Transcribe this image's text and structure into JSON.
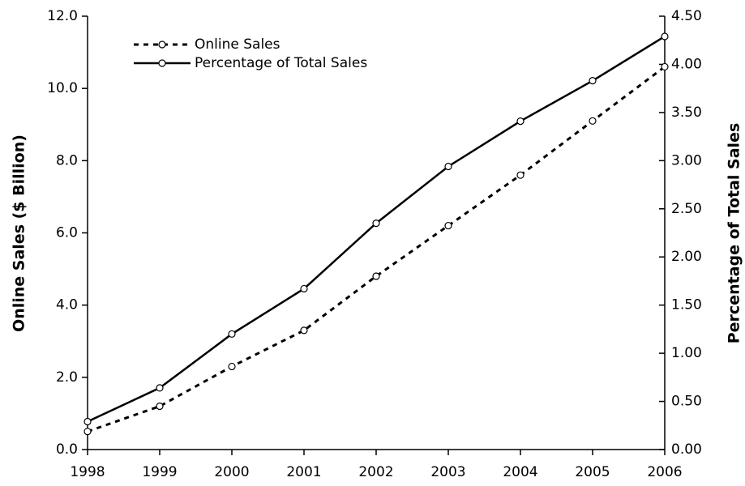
{
  "chart_data": {
    "type": "line",
    "categories": [
      "1998",
      "1999",
      "2000",
      "2001",
      "2002",
      "2003",
      "2004",
      "2005",
      "2006"
    ],
    "ylabel": "Online Sales ($ Billion)",
    "y2label": "Percentage of Total Sales",
    "ylim": [
      0,
      12
    ],
    "yticks": [
      {
        "value": 0,
        "label": "0.0"
      },
      {
        "value": 2,
        "label": "2.0"
      },
      {
        "value": 4,
        "label": "4.0"
      },
      {
        "value": 6,
        "label": "6.0"
      },
      {
        "value": 8,
        "label": "8.0"
      },
      {
        "value": 10,
        "label": "10.0"
      },
      {
        "value": 12,
        "label": "12.0"
      }
    ],
    "y2lim": [
      0,
      4.5
    ],
    "y2ticks": [
      {
        "value": 0,
        "label": "0.00"
      },
      {
        "value": 0.5,
        "label": "0.50"
      },
      {
        "value": 1,
        "label": "1.00"
      },
      {
        "value": 1.5,
        "label": "1.50"
      },
      {
        "value": 2,
        "label": "2.00"
      },
      {
        "value": 2.5,
        "label": "2.50"
      },
      {
        "value": 3,
        "label": "3.00"
      },
      {
        "value": 3.5,
        "label": "3.50"
      },
      {
        "value": 4,
        "label": "4.00"
      },
      {
        "value": 4.5,
        "label": "4.50"
      }
    ],
    "grid": false,
    "legend": "upper left",
    "series": [
      {
        "name": "Online Sales",
        "color": "#000000",
        "dashed": true,
        "values": [
          0.5,
          1.2,
          2.3,
          3.3,
          4.8,
          6.2,
          7.6,
          9.1,
          10.6
        ]
      },
      {
        "name": "Percentage of Total Sales",
        "color": "#000000",
        "dashed": false,
        "axis": "y2",
        "values": [
          0.29,
          0.64,
          1.2,
          1.67,
          2.35,
          2.94,
          3.41,
          3.83,
          4.29
        ]
      }
    ]
  }
}
